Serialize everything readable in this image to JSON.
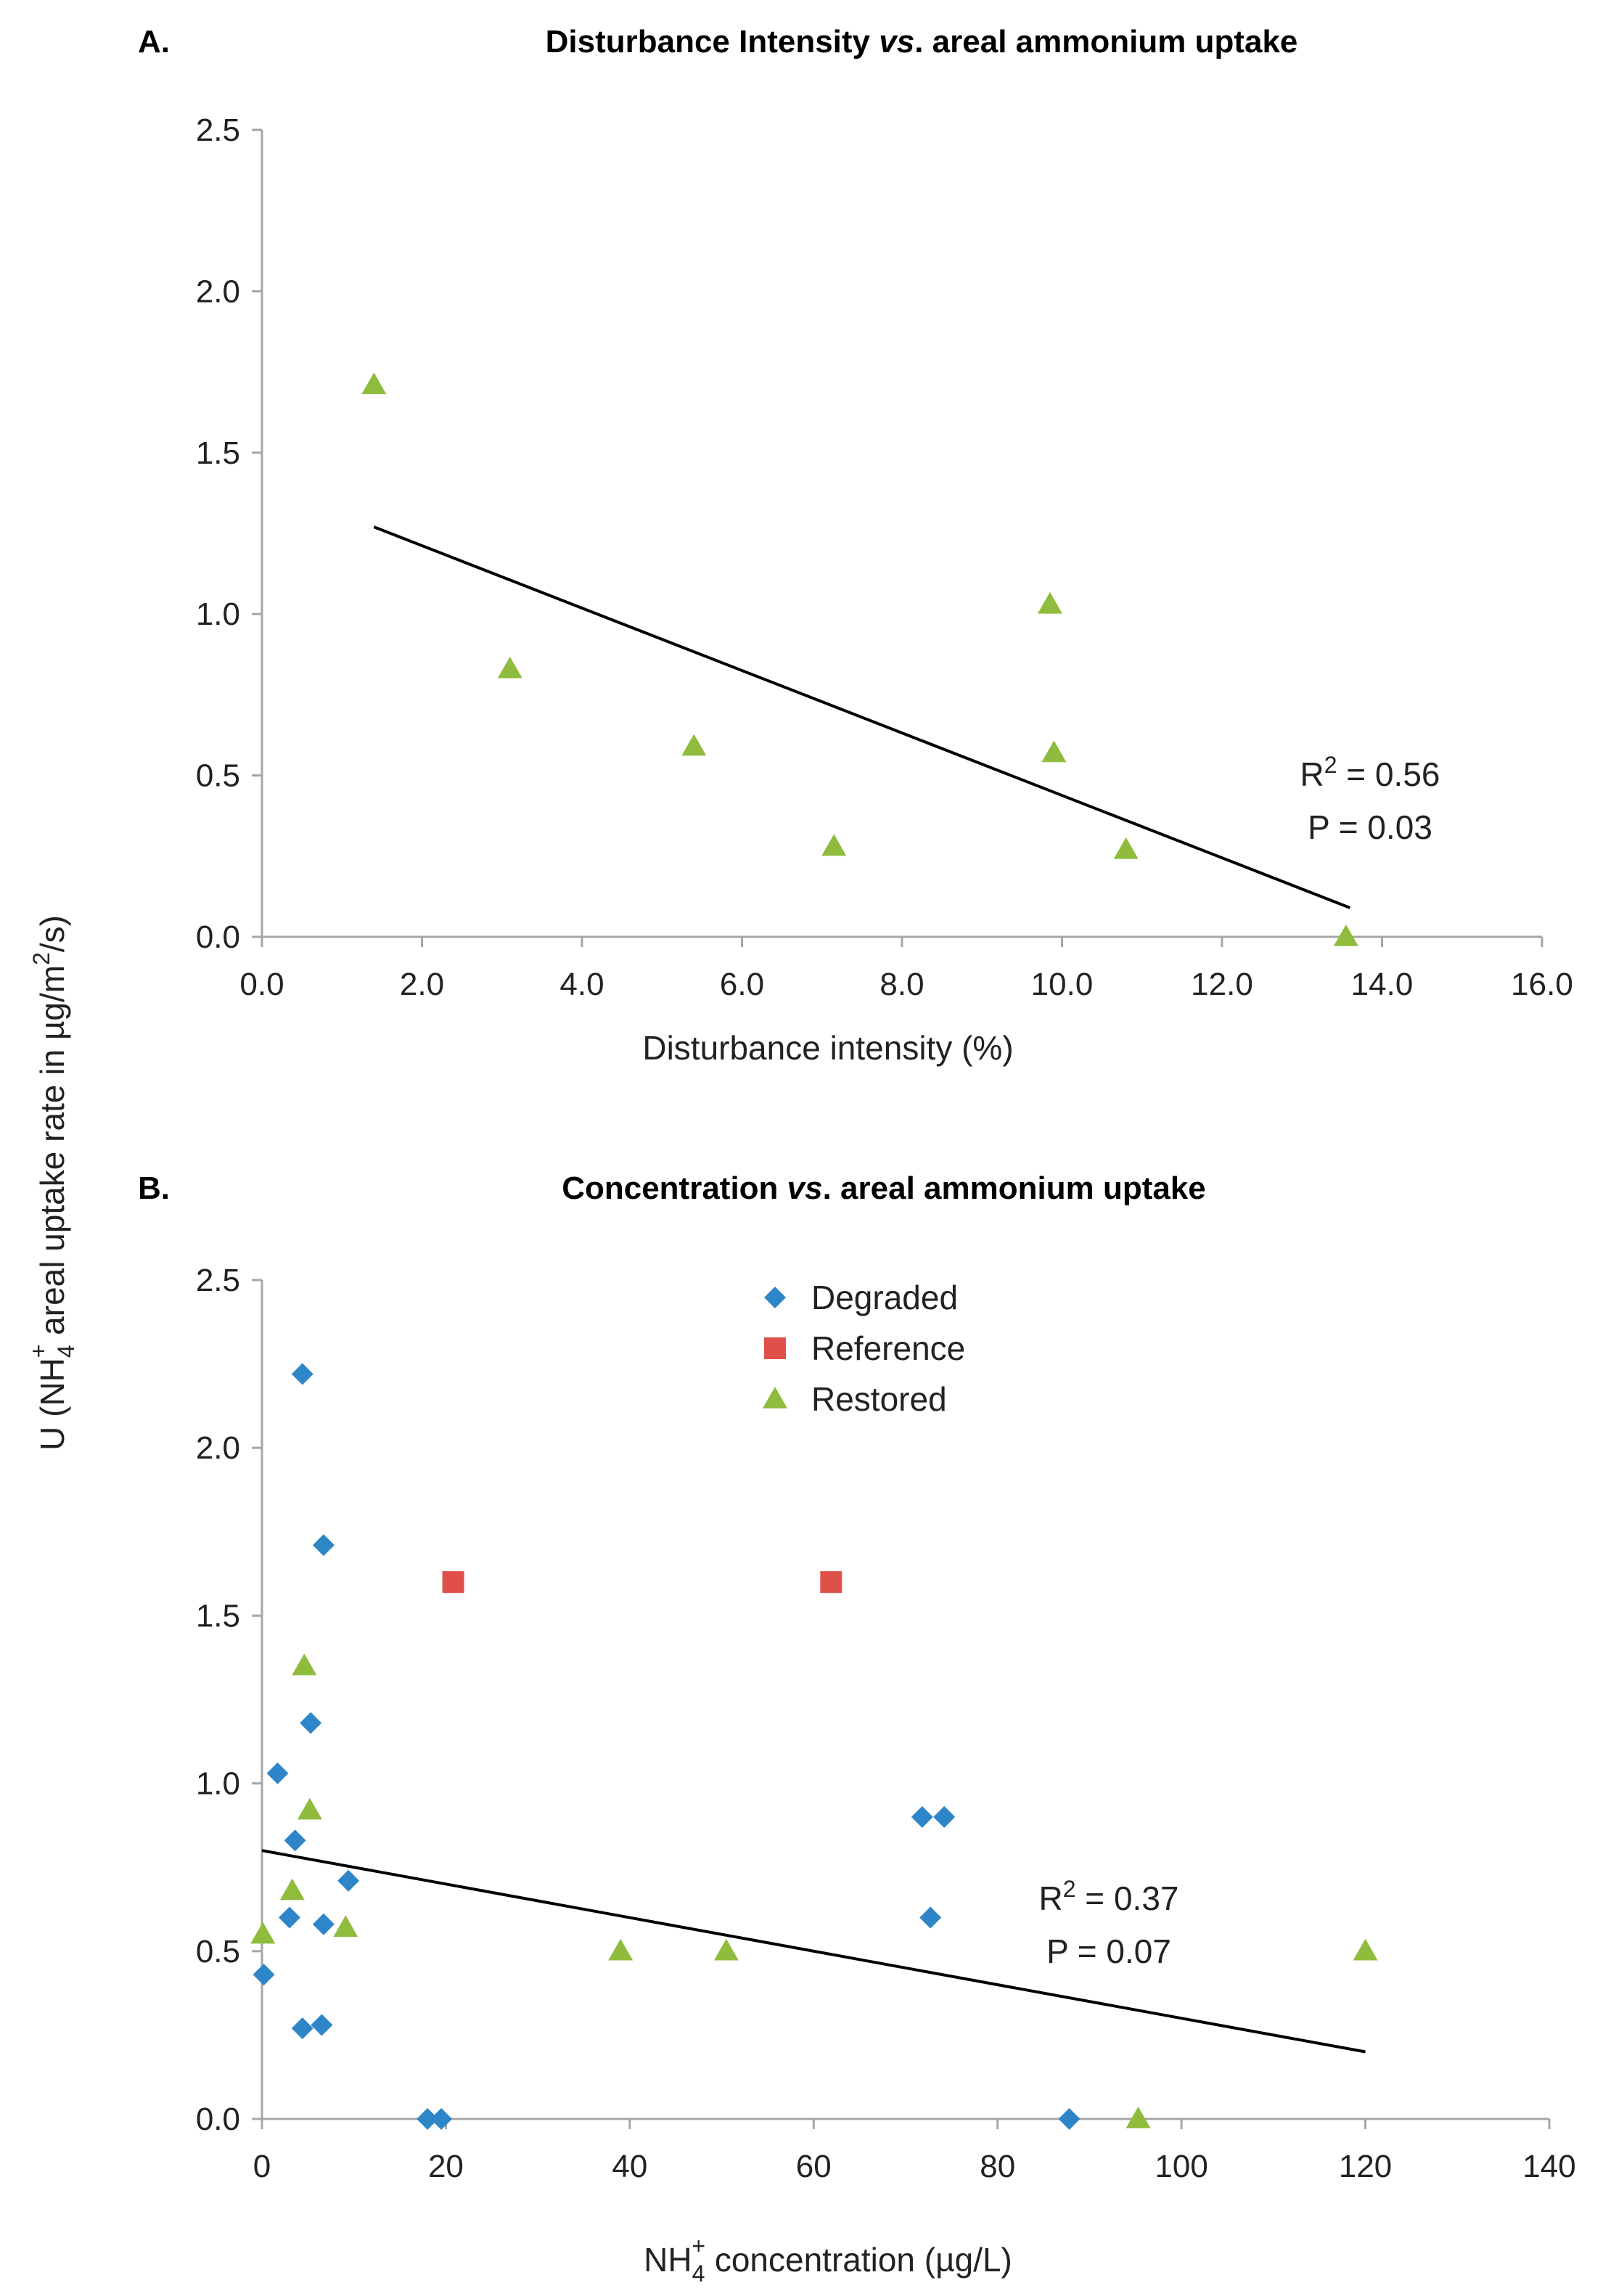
{
  "y_axis_label": {
    "base": "U (NH",
    "sub": "4",
    "sup": "+",
    "middle": " areal uptake rate in µg/m",
    "sup2": "2",
    "tail": "/s)"
  },
  "chart_data": [
    {
      "type": "scatter",
      "panel_letter": "A.",
      "title": {
        "pre": "Disturbance Intensity ",
        "italic": "vs",
        "post": ". areal ammonium uptake"
      },
      "xlabel": "Disturbance intensity (%)",
      "ylabel": "U (NH4+ areal uptake rate in µg/m2/s)",
      "xlim": [
        0,
        16
      ],
      "ylim": [
        0,
        2.5
      ],
      "x_ticks": [
        "0.0",
        "2.0",
        "4.0",
        "6.0",
        "8.0",
        "10.0",
        "12.0",
        "14.0",
        "16.0"
      ],
      "y_ticks": [
        "0.0",
        "0.5",
        "1.0",
        "1.5",
        "2.0",
        "2.5"
      ],
      "grid": false,
      "series": [
        {
          "name": "Restored",
          "marker": "triangle",
          "color": "#8fbc3c",
          "points": [
            [
              1.4,
              1.71
            ],
            [
              3.1,
              0.83
            ],
            [
              5.4,
              0.59
            ],
            [
              7.15,
              0.28
            ],
            [
              9.85,
              1.03
            ],
            [
              9.9,
              0.57
            ],
            [
              10.8,
              0.27
            ],
            [
              13.55,
              0.0
            ]
          ]
        }
      ],
      "trendline": {
        "x": [
          1.4,
          13.6
        ],
        "y": [
          1.27,
          0.09
        ],
        "color": "#000000"
      },
      "stats": {
        "r2_label": "R",
        "r2_sup": "2",
        "r2_value": " = 0.56",
        "p_text": "P = 0.03"
      }
    },
    {
      "type": "scatter",
      "panel_letter": "B.",
      "title": {
        "pre": "Concentration ",
        "italic": "vs",
        "post": ". areal ammonium uptake"
      },
      "xlabel": {
        "pre": "NH",
        "sub": "4",
        "sup": "+",
        "post": " concentration (µg/L)"
      },
      "ylabel": "U (NH4+ areal uptake rate in µg/m2/s)",
      "xlim": [
        0,
        140
      ],
      "ylim": [
        0,
        2.5
      ],
      "x_ticks": [
        "0",
        "20",
        "40",
        "60",
        "80",
        "100",
        "120",
        "140"
      ],
      "y_ticks": [
        "0.0",
        "0.5",
        "1.0",
        "1.5",
        "2.0",
        "2.5"
      ],
      "grid": false,
      "legend_position": "top-center",
      "series": [
        {
          "name": "Degraded",
          "marker": "diamond",
          "color": "#2e86c8",
          "points": [
            [
              4.4,
              2.22
            ],
            [
              6.7,
              1.71
            ],
            [
              5.3,
              1.18
            ],
            [
              1.7,
              1.03
            ],
            [
              3.6,
              0.83
            ],
            [
              9.4,
              0.71
            ],
            [
              3.0,
              0.6
            ],
            [
              6.7,
              0.58
            ],
            [
              0.2,
              0.43
            ],
            [
              4.4,
              0.27
            ],
            [
              6.5,
              0.28
            ],
            [
              18.0,
              0.0
            ],
            [
              19.5,
              0.0
            ],
            [
              71.8,
              0.9
            ],
            [
              74.2,
              0.9
            ],
            [
              72.7,
              0.6
            ],
            [
              87.8,
              0.0
            ]
          ]
        },
        {
          "name": "Reference",
          "marker": "square",
          "color": "#e0504a",
          "points": [
            [
              20.8,
              1.6
            ],
            [
              61.9,
              1.6
            ]
          ]
        },
        {
          "name": "Restored",
          "marker": "triangle",
          "color": "#8fbc3c",
          "points": [
            [
              4.6,
              1.35
            ],
            [
              5.2,
              0.92
            ],
            [
              3.3,
              0.68
            ],
            [
              0.1,
              0.55
            ],
            [
              9.1,
              0.57
            ],
            [
              39.0,
              0.5
            ],
            [
              50.5,
              0.5
            ],
            [
              95.3,
              0.0
            ],
            [
              120.0,
              0.5
            ]
          ]
        }
      ],
      "trendline": {
        "x": [
          0,
          120
        ],
        "y": [
          0.8,
          0.2
        ],
        "color": "#000000"
      },
      "stats": {
        "r2_label": "R",
        "r2_sup": "2",
        "r2_value": " = 0.37",
        "p_text": "P = 0.07"
      }
    }
  ]
}
